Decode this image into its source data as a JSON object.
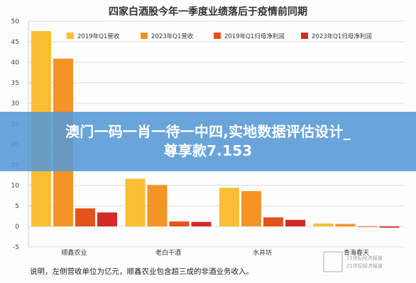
{
  "overlay": {
    "line1": "澳门一码一肖一待一中四,实地数据评估设计_",
    "line2": "尊享款7.153"
  },
  "footnote": "说明，左侧营收单位为亿元，顺鑫农业包含超三成的非酒业务收入。",
  "watermark": {
    "line1": "21世纪经济报道",
    "line2": "21世纪经济报道"
  },
  "colors": {
    "rev2019": "#F9BE32",
    "rev2023": "#F39425",
    "np2019": "#E3531B",
    "np2023": "#D12B26"
  },
  "chart_data": {
    "type": "bar",
    "title": "四家白酒股今年一季度业绩落后于疫情前同期",
    "categories": [
      "顺鑫农业",
      "老白干酒",
      "水井坊",
      "青海春天"
    ],
    "series": [
      {
        "name": "2019年Q1营收",
        "values": [
          47.6,
          11.6,
          9.4,
          0.7
        ]
      },
      {
        "name": "2023年Q1营收",
        "values": [
          40.9,
          10.1,
          8.6,
          0.6
        ]
      },
      {
        "name": "2019年Q1归母净利润",
        "values": [
          4.4,
          1.2,
          2.2,
          0.0
        ]
      },
      {
        "name": "2023年Q1归母净利润",
        "values": [
          3.4,
          1.1,
          1.6,
          -0.3
        ]
      }
    ],
    "ylim": [
      -5,
      50
    ],
    "yticks": [
      -5,
      0,
      5,
      10,
      15,
      20,
      25,
      30,
      35,
      40,
      45,
      50
    ],
    "legend_position": "top",
    "grid": true
  }
}
